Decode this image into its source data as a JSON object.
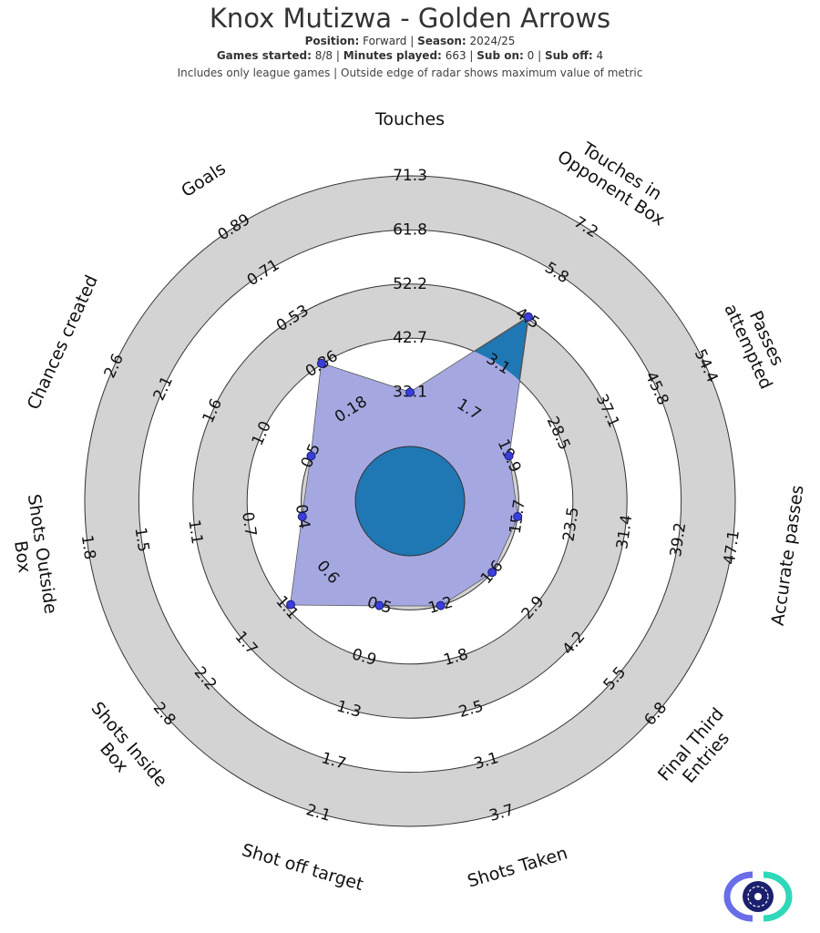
{
  "header": {
    "title": "Knox Mutizwa - Golden Arrows",
    "position_label": "Position",
    "position_value": "Forward",
    "season_label": "Season",
    "season_value": "2024/25",
    "games_started_label": "Games started",
    "games_started_value": "8/8",
    "minutes_played_label": "Minutes played",
    "minutes_played_value": "663",
    "sub_on_label": "Sub on",
    "sub_on_value": "0",
    "sub_off_label": "Sub off",
    "sub_off_value": "4",
    "note": "Includes only league games | Outside edge of radar shows maximum value of metric"
  },
  "chart_data": {
    "type": "radar",
    "title": "Knox Mutizwa - Golden Arrows",
    "rings": 5,
    "band_color": "#d3d3d3",
    "inner_circle_color": "#1f77b4",
    "player_fill_color": "#1f77b4",
    "highlight_fill_color": "#a5a8e0",
    "marker_color": "#3a3fd9",
    "metrics": [
      {
        "name": "Touches",
        "ticks": [
          "33.1",
          "42.7",
          "52.2",
          "61.8",
          "71.3"
        ],
        "value": 33.1
      },
      {
        "name": "Touches in\nOpponent Box",
        "ticks": [
          "1.7",
          "3.1",
          "4.5",
          "5.8",
          "7.2"
        ],
        "value": 4.5
      },
      {
        "name": "Passes\nattempted",
        "ticks": [
          "19.9",
          "28.5",
          "37.1",
          "45.8",
          "54.4"
        ],
        "value": 19.9
      },
      {
        "name": "Accurate passes",
        "ticks": [
          "15.7",
          "23.5",
          "31.4",
          "39.2",
          "47.1"
        ],
        "value": 15.7
      },
      {
        "name": "Final Third\nEntries",
        "ticks": [
          "1.6",
          "2.9",
          "4.2",
          "5.5",
          "6.8"
        ],
        "value": 1.6
      },
      {
        "name": "Shots Taken",
        "ticks": [
          "1.2",
          "1.8",
          "2.5",
          "3.1",
          "3.7"
        ],
        "value": 1.2
      },
      {
        "name": "Shot off target",
        "ticks": [
          "0.5",
          "0.9",
          "1.3",
          "1.7",
          "2.1"
        ],
        "value": 0.5
      },
      {
        "name": "Shots Inside\nBox",
        "ticks": [
          "0.6",
          "1.1",
          "1.7",
          "2.2",
          "2.8"
        ],
        "value": 1.1
      },
      {
        "name": "Shots Outside\nBox",
        "ticks": [
          "0.4",
          "0.7",
          "1.1",
          "1.5",
          "1.8"
        ],
        "value": 0.4
      },
      {
        "name": "Chances created",
        "ticks": [
          "0.5",
          "1.0",
          "1.6",
          "2.1",
          "2.6"
        ],
        "value": 0.5
      },
      {
        "name": "Goals",
        "ticks": [
          "0.18",
          "0.36",
          "0.53",
          "0.71",
          "0.89"
        ],
        "value": 0.36
      }
    ]
  }
}
